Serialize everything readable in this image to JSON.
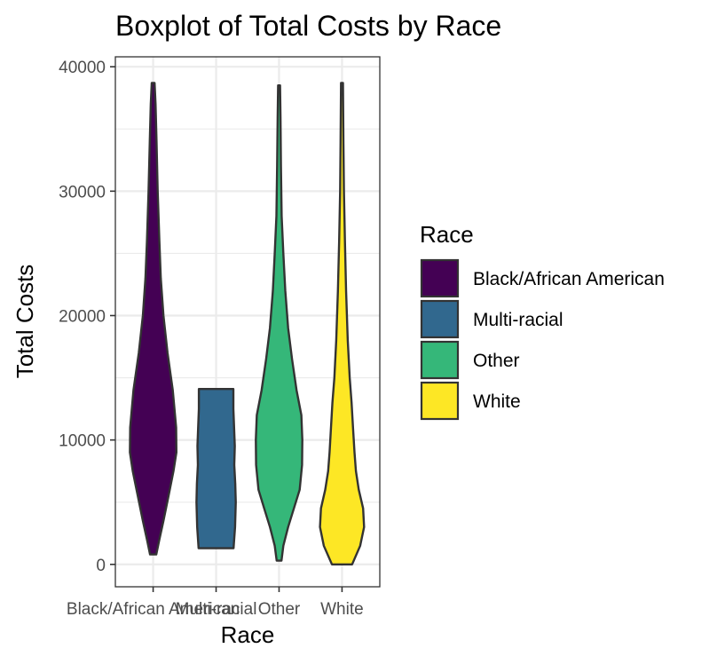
{
  "chart_data": {
    "type": "violin",
    "title": "Boxplot of Total Costs by Race",
    "xlabel": "Race",
    "ylabel": "Total Costs",
    "ylim": [
      -1800,
      40800
    ],
    "yticks": [
      0,
      10000,
      20000,
      30000,
      40000
    ],
    "grid": true,
    "legend": {
      "title": "Race",
      "position": "right"
    },
    "categories": [
      "Black/African American",
      "Multi-racial",
      "Other",
      "White"
    ],
    "series": [
      {
        "name": "Black/African American",
        "color": "#440154",
        "min": 800,
        "max": 38700,
        "profile": [
          [
            800,
            0.13
          ],
          [
            2000,
            0.26
          ],
          [
            3500,
            0.43
          ],
          [
            5500,
            0.64
          ],
          [
            7500,
            0.85
          ],
          [
            9000,
            0.97
          ],
          [
            11000,
            0.96
          ],
          [
            14000,
            0.82
          ],
          [
            17000,
            0.6
          ],
          [
            20000,
            0.43
          ],
          [
            23000,
            0.32
          ],
          [
            26000,
            0.26
          ],
          [
            30000,
            0.19
          ],
          [
            34000,
            0.14
          ],
          [
            37000,
            0.1
          ],
          [
            38700,
            0.06
          ]
        ]
      },
      {
        "name": "Multi-racial",
        "color": "#31688e",
        "min": 1300,
        "max": 14100,
        "profile": [
          [
            1300,
            0.73
          ],
          [
            3000,
            0.79
          ],
          [
            5000,
            0.82
          ],
          [
            6500,
            0.8
          ],
          [
            8000,
            0.76
          ],
          [
            9500,
            0.78
          ],
          [
            11000,
            0.75
          ],
          [
            12500,
            0.72
          ],
          [
            14100,
            0.72
          ]
        ]
      },
      {
        "name": "Other",
        "color": "#35b779",
        "min": 300,
        "max": 38500,
        "profile": [
          [
            300,
            0.1
          ],
          [
            1500,
            0.18
          ],
          [
            3000,
            0.38
          ],
          [
            4500,
            0.62
          ],
          [
            6000,
            0.86
          ],
          [
            8000,
            0.96
          ],
          [
            10000,
            0.97
          ],
          [
            12000,
            0.93
          ],
          [
            14000,
            0.73
          ],
          [
            16500,
            0.54
          ],
          [
            19000,
            0.38
          ],
          [
            22000,
            0.26
          ],
          [
            25000,
            0.18
          ],
          [
            28000,
            0.11
          ],
          [
            32000,
            0.08
          ],
          [
            36000,
            0.06
          ],
          [
            38500,
            0.04
          ]
        ]
      },
      {
        "name": "White",
        "color": "#fde725",
        "min": 0,
        "max": 38700,
        "profile": [
          [
            0,
            0.42
          ],
          [
            1500,
            0.76
          ],
          [
            3000,
            0.92
          ],
          [
            4500,
            0.88
          ],
          [
            6000,
            0.7
          ],
          [
            7500,
            0.58
          ],
          [
            9000,
            0.52
          ],
          [
            11000,
            0.46
          ],
          [
            13000,
            0.4
          ],
          [
            15000,
            0.32
          ],
          [
            18000,
            0.24
          ],
          [
            22000,
            0.17
          ],
          [
            26000,
            0.12
          ],
          [
            30000,
            0.08
          ],
          [
            34000,
            0.06
          ],
          [
            38700,
            0.04
          ]
        ]
      }
    ]
  }
}
